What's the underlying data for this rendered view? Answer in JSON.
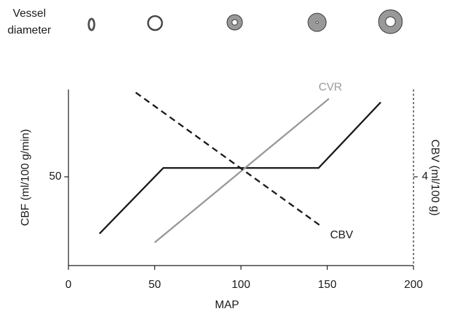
{
  "vessel_label_lines": [
    "Vessel",
    "diameter"
  ],
  "chart_data": {
    "type": "line",
    "xlabel": "MAP",
    "ylabel": "CBF (ml/100 g/min)",
    "y2label": "CBV (ml/100 g)",
    "xlim": [
      0,
      200
    ],
    "xticks": [
      0,
      50,
      100,
      150,
      200
    ],
    "ylim": [
      0,
      100
    ],
    "yticks": [
      50
    ],
    "y2lim": [
      0,
      8
    ],
    "y2ticks": [
      4
    ],
    "series": [
      {
        "color": "#1a1a1a",
        "style": "solid",
        "x": [
          18,
          55,
          145,
          181
        ],
        "values": [
          18,
          55,
          55,
          92
        ]
      },
      {
        "name": "CVR",
        "color": "#999999",
        "style": "solid",
        "x": [
          50,
          151
        ],
        "values": [
          13,
          94
        ]
      },
      {
        "name": "CBV",
        "color": "#1a1a1a",
        "style": "dashed",
        "axis": "y2",
        "x": [
          39,
          146
        ],
        "values": [
          7.8,
          1.8
        ]
      }
    ]
  }
}
